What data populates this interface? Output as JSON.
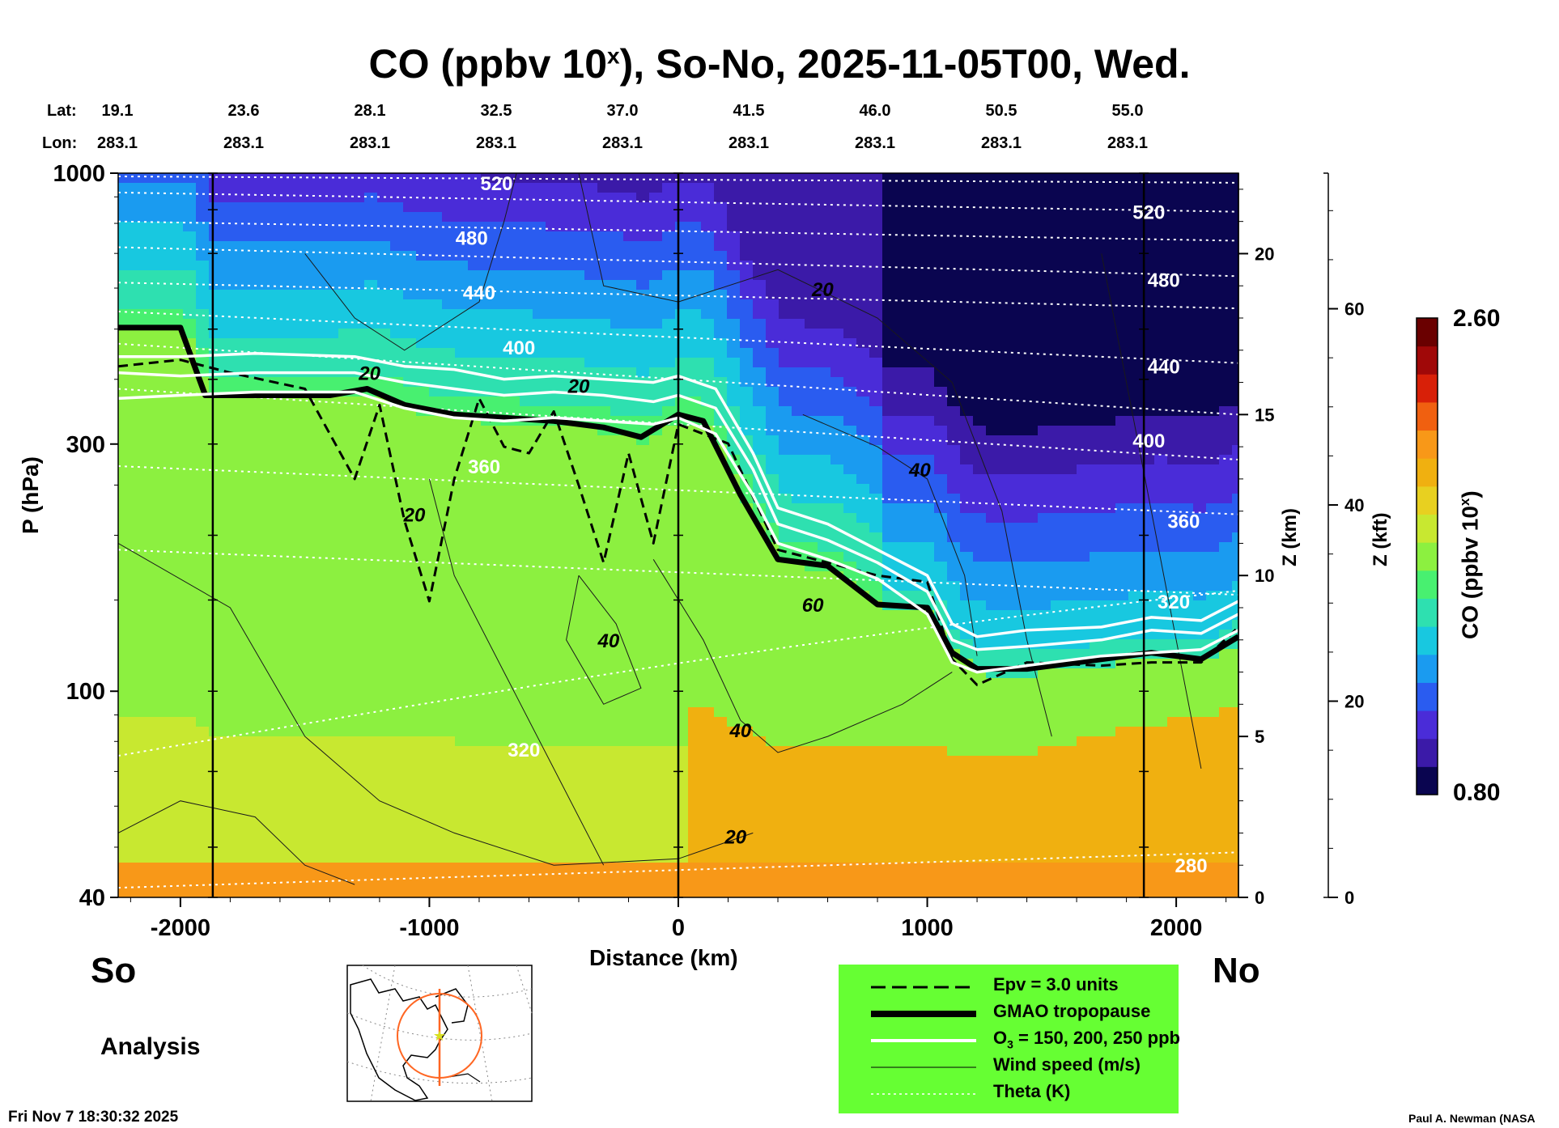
{
  "title": {
    "prefix": "CO (ppbv 10",
    "superscript": "x",
    "suffix": "), So-No, 2025-11-05T00, Wed."
  },
  "header": {
    "lat_label": "Lat:",
    "lon_label": "Lon:",
    "lat_values": [
      "19.1",
      "23.6",
      "28.1",
      "32.5",
      "37.0",
      "41.5",
      "46.0",
      "50.5",
      "55.0"
    ],
    "lon_values": [
      "283.1",
      "283.1",
      "283.1",
      "283.1",
      "283.1",
      "283.1",
      "283.1",
      "283.1",
      "283.1"
    ]
  },
  "chart_data": {
    "type": "heatmap",
    "title": "CO (ppbv 10^x), So-No, 2025-11-05T00, Wed.",
    "xlabel": "Distance (km)",
    "ylabel": "P (hPa)",
    "right_axis_labels": [
      "Z (km)",
      "Z (kft)"
    ],
    "x_range": [
      -2250,
      2250
    ],
    "y_range_hPa": [
      1000,
      40
    ],
    "y_scale": "log",
    "x_ticks": [
      "-2000",
      "-1000",
      "0",
      "1000",
      "2000"
    ],
    "y_ticks": [
      "40",
      "100",
      "300",
      "1000"
    ],
    "z_km_ticks": [
      "0",
      "5",
      "10",
      "15",
      "20"
    ],
    "z_kft_ticks": [
      "0",
      "20",
      "40",
      "60"
    ],
    "colorbar": {
      "label": "CO (ppbv 10",
      "label_sup": "x",
      "label_end": ")",
      "min": "0.80",
      "max": "2.60",
      "colors": [
        "#0a0550",
        "#3b1aa8",
        "#4a2cd8",
        "#2a5cf0",
        "#1a9bf0",
        "#18c8e0",
        "#2ee0b0",
        "#48f070",
        "#8cf040",
        "#c8e830",
        "#e8d020",
        "#f0b010",
        "#f89818",
        "#f06010",
        "#d82008",
        "#a00808",
        "#6a0000"
      ]
    },
    "theta_labels_K": [
      {
        "text": "520",
        "x": -730,
        "z_km": 22.2
      },
      {
        "text": "480",
        "x": -830,
        "z_km": 20.5
      },
      {
        "text": "440",
        "x": -800,
        "z_km": 18.8
      },
      {
        "text": "400",
        "x": -640,
        "z_km": 17.1
      },
      {
        "text": "360",
        "x": -780,
        "z_km": 13.4
      },
      {
        "text": "320",
        "x": -620,
        "z_km": 4.6
      },
      {
        "text": "520",
        "x": 1890,
        "z_km": 21.3
      },
      {
        "text": "480",
        "x": 1950,
        "z_km": 19.2
      },
      {
        "text": "440",
        "x": 1950,
        "z_km": 16.5
      },
      {
        "text": "400",
        "x": 1890,
        "z_km": 14.2
      },
      {
        "text": "360",
        "x": 2030,
        "z_km": 11.7
      },
      {
        "text": "320",
        "x": 1990,
        "z_km": 9.2
      },
      {
        "text": "280",
        "x": 2060,
        "z_km": 1.0
      }
    ],
    "wind_speed_labels_ms": [
      {
        "text": "20",
        "x": -1240,
        "z_km": 16.3
      },
      {
        "text": "20",
        "x": -400,
        "z_km": 15.9
      },
      {
        "text": "20",
        "x": 580,
        "z_km": 18.9
      },
      {
        "text": "20",
        "x": -1060,
        "z_km": 11.9
      },
      {
        "text": "40",
        "x": -280,
        "z_km": 8.0
      },
      {
        "text": "40",
        "x": 970,
        "z_km": 13.3
      },
      {
        "text": "60",
        "x": 540,
        "z_km": 9.1
      },
      {
        "text": "40",
        "x": 250,
        "z_km": 5.2
      },
      {
        "text": "20",
        "x": 230,
        "z_km": 1.9
      }
    ],
    "vertical_markers_km": [
      -1870,
      0,
      1870
    ],
    "series": [
      {
        "name": "GMAO tropopause",
        "x": [
          -2250,
          -2000,
          -1900,
          -1600,
          -1400,
          -1250,
          -1100,
          -900,
          -700,
          -500,
          -300,
          -150,
          0,
          100,
          250,
          400,
          600,
          800,
          1000,
          1100,
          1200,
          1400,
          1700,
          1900,
          2100,
          2250
        ],
        "z_km": [
          17.7,
          17.7,
          15.6,
          15.6,
          15.6,
          15.8,
          15.3,
          15.0,
          14.9,
          14.8,
          14.6,
          14.3,
          15.0,
          14.8,
          12.5,
          10.5,
          10.3,
          9.1,
          9.0,
          7.6,
          7.1,
          7.1,
          7.4,
          7.6,
          7.4,
          8.1
        ]
      },
      {
        "name": "Epv = 3.0 units",
        "x": [
          -2250,
          -2000,
          -1800,
          -1500,
          -1300,
          -1200,
          -1100,
          -1000,
          -900,
          -800,
          -700,
          -600,
          -500,
          -400,
          -300,
          -200,
          -100,
          0,
          200,
          400,
          600,
          800,
          1000,
          1100,
          1200,
          1400,
          1700,
          1900,
          2100,
          2250
        ],
        "z_km": [
          16.5,
          16.7,
          16.3,
          15.8,
          13.0,
          15.3,
          11.7,
          9.2,
          13.0,
          15.5,
          14.0,
          13.8,
          15.1,
          12.8,
          10.4,
          13.8,
          11.0,
          14.7,
          14.1,
          10.8,
          10.4,
          10.0,
          9.8,
          7.4,
          6.6,
          7.3,
          7.2,
          7.3,
          7.3,
          8.4
        ]
      },
      {
        "name": "O3 = 150 ppb",
        "x": [
          -2250,
          -2000,
          -1700,
          -1300,
          -1100,
          -900,
          -700,
          -500,
          -300,
          -100,
          0,
          150,
          300,
          400,
          600,
          800,
          1000,
          1100,
          1200,
          1400,
          1700,
          1900,
          2100,
          2250
        ],
        "z_km": [
          16.3,
          16.2,
          16.3,
          16.3,
          16.0,
          15.8,
          15.6,
          15.7,
          15.6,
          15.4,
          15.6,
          15.2,
          13.3,
          11.6,
          11.1,
          10.4,
          9.5,
          8.0,
          7.7,
          7.8,
          8.0,
          8.3,
          8.2,
          8.8
        ]
      },
      {
        "name": "O3 = 200 ppb",
        "x": [
          -2250,
          -2000,
          -1700,
          -1300,
          -1100,
          -900,
          -700,
          -500,
          -300,
          -100,
          0,
          150,
          300,
          400,
          600,
          800,
          1000,
          1100,
          1200,
          1400,
          1700,
          1900,
          2100,
          2250
        ],
        "z_km": [
          15.5,
          15.6,
          15.7,
          15.7,
          15.2,
          14.9,
          14.8,
          14.9,
          14.8,
          14.7,
          14.9,
          14.4,
          12.5,
          11.0,
          10.5,
          9.9,
          8.8,
          7.3,
          7.0,
          7.2,
          7.5,
          7.6,
          7.7,
          8.3
        ]
      },
      {
        "name": "O3 = 250 ppb",
        "x": [
          -2250,
          -2000,
          -1700,
          -1300,
          -1100,
          -900,
          -700,
          -500,
          -300,
          -100,
          0,
          150,
          300,
          400,
          600,
          800,
          1000,
          1100,
          1200,
          1400,
          1700,
          1900,
          2100,
          2250
        ],
        "z_km": [
          16.8,
          16.8,
          16.9,
          16.8,
          16.5,
          16.4,
          16.1,
          16.2,
          16.1,
          16.0,
          16.2,
          15.8,
          13.8,
          12.1,
          11.6,
          10.8,
          10.0,
          8.5,
          8.1,
          8.3,
          8.4,
          8.7,
          8.6,
          9.2
        ]
      }
    ]
  },
  "labels": {
    "so": "So",
    "no": "No",
    "analysis": "Analysis",
    "timestamp": "Fri Nov  7 18:30:32 2025",
    "credit": "Paul A. Newman (NASA"
  },
  "legend": {
    "items": [
      "Epv = 3.0 units",
      "GMAO tropopause",
      "O",
      "Wind speed (m/s)",
      "Theta (K)"
    ],
    "o3_sub": "3",
    "o3_rest": " = 150, 200, 250 ppb"
  },
  "colors": {
    "legend_bg": "#66ff33",
    "map_marker": "#ff6622"
  }
}
